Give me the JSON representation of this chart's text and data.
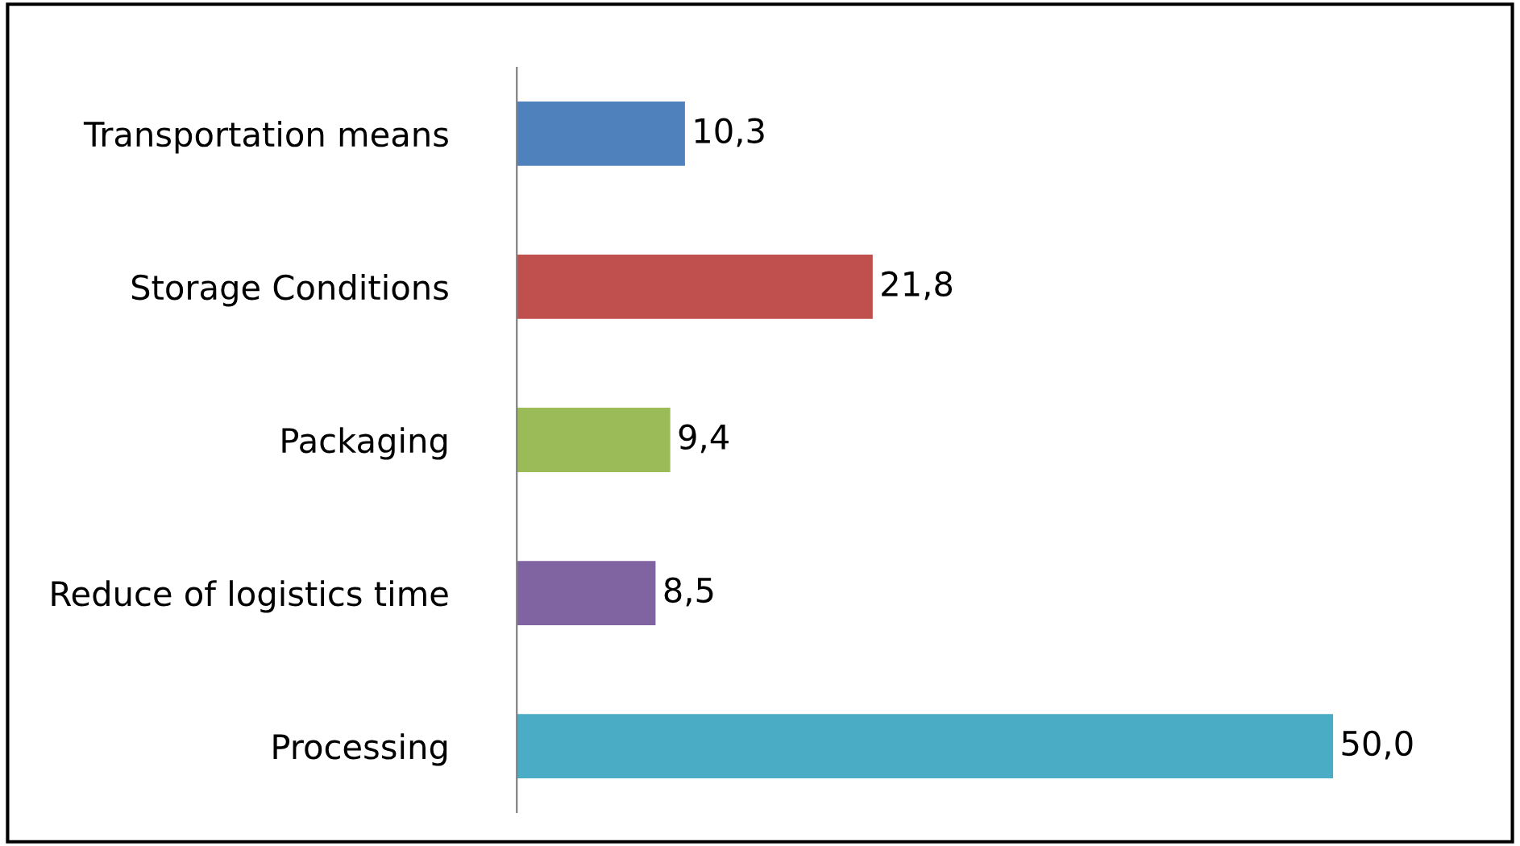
{
  "chart_data": {
    "type": "bar",
    "orientation": "horizontal",
    "categories": [
      "Transportation means",
      "Storage Conditions",
      "Packaging",
      "Reduce of logistics time",
      "Processing"
    ],
    "values": [
      10.3,
      21.8,
      9.4,
      8.5,
      50.0
    ],
    "colors": [
      "#4f81bd",
      "#c0504d",
      "#9bbb59",
      "#8064a2",
      "#4bacc6"
    ],
    "value_labels": [
      "10,3",
      "21,8",
      "9,4",
      "8,5",
      "50,0"
    ],
    "grid": false,
    "legend": false
  }
}
